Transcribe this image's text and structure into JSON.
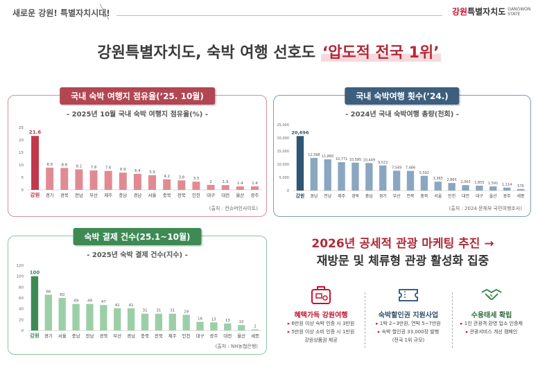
{
  "header": {
    "tagline": "새로운 강원! 특별자치시대!",
    "logo_red": "강원",
    "logo_text": "특별자치도",
    "logo_sub1": "GANGWON",
    "logo_sub2": "STATE"
  },
  "main_title": {
    "part1": "강원특별자치도, 숙박 여행 선호도",
    "part2": "‘압도적 전국 1위’"
  },
  "panels": {
    "p1": {
      "head": "국내 숙박 여행지 점유율(’25. 10월)",
      "subtitle": "- 2025년 10월 국내 숙박 여행지 점유율(%) -",
      "source": "(출처 : 컨슈머인사이트)"
    },
    "p2": {
      "head": "국내 숙박여행 횟수(’24.)",
      "subtitle": "- 2024년 국내 숙박여행 총량(천회) -",
      "source": "(출처 : 2024 문체부 국민여행조사)"
    },
    "p3": {
      "head": "숙박 결제 건수(25.1~10월)",
      "subtitle": "- 2025년 숙박 결제 건수(지수) -",
      "source": "(출처 : NH농협은행)"
    }
  },
  "right": {
    "title1": "2026년 공세적 관광 마케팅 추진 →",
    "title2": "재방문 및 체류형 관광 활성화 집중",
    "features": [
      {
        "icon": "suitcase-icon",
        "title": "혜택가득 강원여행",
        "lines": [
          "6만원 이상 숙박 인증 시 3만원",
          "5만원 이상 소비 인증 시 1만원",
          "강원상품권 제공"
        ]
      },
      {
        "icon": "ticket-icon",
        "title": "숙박할인권 지원사업",
        "lines": [
          "1박 2~3만원, 연박 5~7만원",
          "숙박 할인권 33,000장 발행",
          "(전국 1위 규모)"
        ]
      },
      {
        "icon": "handshake-icon",
        "title": "수용태세 확립",
        "lines": [
          "1인 관광객 환영 업소 인증제",
          "관광서비스 개선 캠페인"
        ]
      }
    ],
    "colors": {
      "accent": "#c8102e"
    }
  },
  "chart_data": [
    {
      "type": "bar",
      "title": "- 2025년 10월 국내 숙박 여행지 점유율(%) -",
      "categories": [
        "강원",
        "경기",
        "경북",
        "전남",
        "부산",
        "제주",
        "충남",
        "경남",
        "서울",
        "충북",
        "전북",
        "인천",
        "대구",
        "대전",
        "울산",
        "광주"
      ],
      "values": [
        21.6,
        8.9,
        8.8,
        8.2,
        7.8,
        7.6,
        6.9,
        6.4,
        5.9,
        4.2,
        3.8,
        3.3,
        2,
        1.9,
        1.4,
        1.4
      ],
      "ylim": [
        0,
        25
      ],
      "yticks": [
        0,
        5,
        10,
        15,
        20,
        25
      ],
      "colors": {
        "highlight": "#c0394b",
        "bar": "#e08b93"
      },
      "grid": false
    },
    {
      "type": "bar",
      "title": "- 2024년 국내 숙박여행 총량(천회) -",
      "categories": [
        "강원",
        "경남",
        "전남",
        "제주",
        "경북",
        "충남",
        "경기",
        "부산",
        "전북",
        "충북",
        "서울",
        "인천",
        "대전",
        "대구",
        "울산",
        "광주",
        "세종"
      ],
      "values": [
        20696,
        12398,
        11860,
        10771,
        10585,
        10449,
        9522,
        7549,
        7486,
        5592,
        3365,
        2865,
        2063,
        1855,
        1591,
        1114,
        576
      ],
      "value_labels": [
        "20,696",
        "12,398",
        "11,860",
        "10,771",
        "10,585",
        "10,449",
        "9,522",
        "7,549",
        "7,486",
        "5,592",
        "3,365",
        "2,865",
        "2,063",
        "1,855",
        "1,591",
        "1,114",
        "576"
      ],
      "ylim": [
        0,
        25000
      ],
      "yticks": [
        0,
        5000,
        10000,
        15000,
        20000,
        25000
      ],
      "ytick_labels": [
        "0",
        "5,000",
        "10,000",
        "15,000",
        "20,000",
        "25,000"
      ],
      "colors": {
        "highlight": "#2f5575",
        "bar": "#8aa6c1"
      },
      "grid": false
    },
    {
      "type": "bar",
      "title": "- 2025년 숙박 결제 건수(지수) -",
      "categories": [
        "강원",
        "경기",
        "서울",
        "충남",
        "전남",
        "경북",
        "부산",
        "경남",
        "충북",
        "전북",
        "제주",
        "인천",
        "대구",
        "광주",
        "대전",
        "울산",
        "세종"
      ],
      "values": [
        100,
        66,
        60,
        49,
        49,
        47,
        41,
        41,
        31,
        31,
        31,
        29,
        16,
        15,
        13,
        10,
        2
      ],
      "ylim": [
        0,
        120
      ],
      "yticks": [
        0,
        20,
        40,
        60,
        80,
        100,
        120
      ],
      "colors": {
        "highlight": "#3e8a55",
        "bar": "#9ccfa8"
      },
      "grid": false
    }
  ]
}
